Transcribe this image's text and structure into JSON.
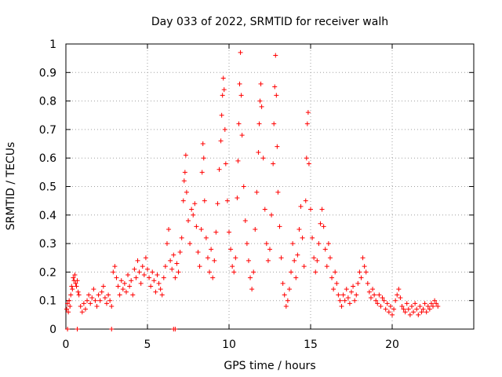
{
  "chart_data": {
    "type": "scatter",
    "title": "Day 033 of 2022, SRMTID for receiver walh",
    "xlabel": "GPS time / hours",
    "ylabel": "SRMTID / TECUs",
    "xlim": [
      0,
      25
    ],
    "ylim": [
      0,
      1
    ],
    "xticks": [
      0,
      5,
      10,
      15,
      20
    ],
    "xtick_labels": [
      "0",
      "5",
      "10",
      "15",
      "20"
    ],
    "yticks": [
      0,
      0.1,
      0.2,
      0.3,
      0.4,
      0.5,
      0.6,
      0.7,
      0.8,
      0.9,
      1
    ],
    "ytick_labels": [
      "0",
      "0.1",
      "0.2",
      "0.3",
      "0.4",
      "0.5",
      "0.6",
      "0.7",
      "0.8",
      "0.9",
      "1"
    ],
    "grid": true,
    "marker": "+",
    "color": "#ff0000",
    "series": [
      {
        "name": "SRMTID",
        "points": [
          [
            0.05,
            0.07
          ],
          [
            0.1,
            0.09
          ],
          [
            0.15,
            0.06
          ],
          [
            0.2,
            0.1
          ],
          [
            0.25,
            0.08
          ],
          [
            0.3,
            0.12
          ],
          [
            0.35,
            0.15
          ],
          [
            0.4,
            0.14
          ],
          [
            0.45,
            0.18
          ],
          [
            0.5,
            0.17
          ],
          [
            0.55,
            0.19
          ],
          [
            0.6,
            0.16
          ],
          [
            0.65,
            0.15
          ],
          [
            0.7,
            0.17
          ],
          [
            0.75,
            0.13
          ],
          [
            0.8,
            0.12
          ],
          [
            0.9,
            0.08
          ],
          [
            1.0,
            0.06
          ],
          [
            1.1,
            0.09
          ],
          [
            1.2,
            0.07
          ],
          [
            1.3,
            0.1
          ],
          [
            1.4,
            0.12
          ],
          [
            1.5,
            0.09
          ],
          [
            1.6,
            0.11
          ],
          [
            1.7,
            0.14
          ],
          [
            1.8,
            0.1
          ],
          [
            1.9,
            0.08
          ],
          [
            2.0,
            0.12
          ],
          [
            2.1,
            0.1
          ],
          [
            2.2,
            0.13
          ],
          [
            2.3,
            0.15
          ],
          [
            2.4,
            0.11
          ],
          [
            2.5,
            0.09
          ],
          [
            2.6,
            0.12
          ],
          [
            2.7,
            0.1
          ],
          [
            2.8,
            0.08
          ],
          [
            2.9,
            0.2
          ],
          [
            3.0,
            0.22
          ],
          [
            3.1,
            0.18
          ],
          [
            3.2,
            0.15
          ],
          [
            3.3,
            0.12
          ],
          [
            3.4,
            0.17
          ],
          [
            3.5,
            0.14
          ],
          [
            3.6,
            0.16
          ],
          [
            3.7,
            0.13
          ],
          [
            3.8,
            0.19
          ],
          [
            3.9,
            0.15
          ],
          [
            4.0,
            0.17
          ],
          [
            4.1,
            0.12
          ],
          [
            4.2,
            0.21
          ],
          [
            4.3,
            0.18
          ],
          [
            4.4,
            0.24
          ],
          [
            4.5,
            0.2
          ],
          [
            4.6,
            0.16
          ],
          [
            4.7,
            0.22
          ],
          [
            4.8,
            0.19
          ],
          [
            4.9,
            0.25
          ],
          [
            5.0,
            0.21
          ],
          [
            5.1,
            0.18
          ],
          [
            5.2,
            0.15
          ],
          [
            5.3,
            0.2
          ],
          [
            5.4,
            0.17
          ],
          [
            5.5,
            0.13
          ],
          [
            5.6,
            0.19
          ],
          [
            5.7,
            0.16
          ],
          [
            5.8,
            0.14
          ],
          [
            5.9,
            0.12
          ],
          [
            6.0,
            0.18
          ],
          [
            6.1,
            0.22
          ],
          [
            6.2,
            0.3
          ],
          [
            6.3,
            0.35
          ],
          [
            6.4,
            0.24
          ],
          [
            6.5,
            0.21
          ],
          [
            6.6,
            0.26
          ],
          [
            6.7,
            0.18
          ],
          [
            6.8,
            0.23
          ],
          [
            6.9,
            0.2
          ],
          [
            7.0,
            0.27
          ],
          [
            7.1,
            0.32
          ],
          [
            7.2,
            0.45
          ],
          [
            7.25,
            0.52
          ],
          [
            7.3,
            0.55
          ],
          [
            7.35,
            0.61
          ],
          [
            7.4,
            0.48
          ],
          [
            7.5,
            0.38
          ],
          [
            7.6,
            0.3
          ],
          [
            7.7,
            0.42
          ],
          [
            7.8,
            0.4
          ],
          [
            7.9,
            0.44
          ],
          [
            8.0,
            0.36
          ],
          [
            8.1,
            0.27
          ],
          [
            8.2,
            0.22
          ],
          [
            8.3,
            0.35
          ],
          [
            8.35,
            0.55
          ],
          [
            8.4,
            0.65
          ],
          [
            8.45,
            0.6
          ],
          [
            8.5,
            0.45
          ],
          [
            8.6,
            0.32
          ],
          [
            8.7,
            0.25
          ],
          [
            8.8,
            0.2
          ],
          [
            8.9,
            0.28
          ],
          [
            9.0,
            0.18
          ],
          [
            9.1,
            0.24
          ],
          [
            9.2,
            0.34
          ],
          [
            9.3,
            0.44
          ],
          [
            9.4,
            0.56
          ],
          [
            9.5,
            0.66
          ],
          [
            9.55,
            0.75
          ],
          [
            9.6,
            0.82
          ],
          [
            9.65,
            0.88
          ],
          [
            9.7,
            0.84
          ],
          [
            9.75,
            0.7
          ],
          [
            9.8,
            0.58
          ],
          [
            9.9,
            0.45
          ],
          [
            10.0,
            0.34
          ],
          [
            10.1,
            0.28
          ],
          [
            10.2,
            0.22
          ],
          [
            10.3,
            0.2
          ],
          [
            10.4,
            0.25
          ],
          [
            10.5,
            0.46
          ],
          [
            10.55,
            0.59
          ],
          [
            10.6,
            0.72
          ],
          [
            10.65,
            0.86
          ],
          [
            10.7,
            0.97
          ],
          [
            10.75,
            0.82
          ],
          [
            10.8,
            0.68
          ],
          [
            10.9,
            0.5
          ],
          [
            11.0,
            0.38
          ],
          [
            11.1,
            0.3
          ],
          [
            11.2,
            0.24
          ],
          [
            11.3,
            0.18
          ],
          [
            11.4,
            0.14
          ],
          [
            11.5,
            0.2
          ],
          [
            11.6,
            0.35
          ],
          [
            11.7,
            0.48
          ],
          [
            11.8,
            0.62
          ],
          [
            11.85,
            0.72
          ],
          [
            11.9,
            0.8
          ],
          [
            11.95,
            0.86
          ],
          [
            12.0,
            0.78
          ],
          [
            12.1,
            0.6
          ],
          [
            12.2,
            0.42
          ],
          [
            12.3,
            0.3
          ],
          [
            12.4,
            0.24
          ],
          [
            12.5,
            0.28
          ],
          [
            12.6,
            0.4
          ],
          [
            12.7,
            0.58
          ],
          [
            12.75,
            0.72
          ],
          [
            12.8,
            0.85
          ],
          [
            12.85,
            0.96
          ],
          [
            12.9,
            0.82
          ],
          [
            12.95,
            0.64
          ],
          [
            13.0,
            0.48
          ],
          [
            13.1,
            0.36
          ],
          [
            13.2,
            0.25
          ],
          [
            13.3,
            0.16
          ],
          [
            13.4,
            0.12
          ],
          [
            13.5,
            0.08
          ],
          [
            13.6,
            0.1
          ],
          [
            13.7,
            0.14
          ],
          [
            13.8,
            0.2
          ],
          [
            13.9,
            0.3
          ],
          [
            14.0,
            0.24
          ],
          [
            14.1,
            0.18
          ],
          [
            14.2,
            0.26
          ],
          [
            14.3,
            0.35
          ],
          [
            14.4,
            0.43
          ],
          [
            14.5,
            0.32
          ],
          [
            14.6,
            0.22
          ],
          [
            14.7,
            0.45
          ],
          [
            14.75,
            0.6
          ],
          [
            14.8,
            0.72
          ],
          [
            14.85,
            0.76
          ],
          [
            14.9,
            0.58
          ],
          [
            15.0,
            0.42
          ],
          [
            15.1,
            0.32
          ],
          [
            15.2,
            0.25
          ],
          [
            15.3,
            0.2
          ],
          [
            15.4,
            0.24
          ],
          [
            15.5,
            0.3
          ],
          [
            15.6,
            0.37
          ],
          [
            15.7,
            0.42
          ],
          [
            15.8,
            0.36
          ],
          [
            15.9,
            0.28
          ],
          [
            16.0,
            0.22
          ],
          [
            16.1,
            0.3
          ],
          [
            16.2,
            0.25
          ],
          [
            16.3,
            0.18
          ],
          [
            16.4,
            0.14
          ],
          [
            16.5,
            0.2
          ],
          [
            16.6,
            0.16
          ],
          [
            16.7,
            0.12
          ],
          [
            16.8,
            0.1
          ],
          [
            16.9,
            0.08
          ],
          [
            17.0,
            0.12
          ],
          [
            17.1,
            0.1
          ],
          [
            17.2,
            0.14
          ],
          [
            17.3,
            0.11
          ],
          [
            17.4,
            0.09
          ],
          [
            17.5,
            0.13
          ],
          [
            17.6,
            0.15
          ],
          [
            17.7,
            0.1
          ],
          [
            17.8,
            0.12
          ],
          [
            17.9,
            0.16
          ],
          [
            18.0,
            0.2
          ],
          [
            18.1,
            0.18
          ],
          [
            18.2,
            0.25
          ],
          [
            18.3,
            0.22
          ],
          [
            18.4,
            0.2
          ],
          [
            18.5,
            0.16
          ],
          [
            18.6,
            0.13
          ],
          [
            18.7,
            0.11
          ],
          [
            18.8,
            0.14
          ],
          [
            18.9,
            0.12
          ],
          [
            19.0,
            0.1
          ],
          [
            19.1,
            0.09
          ],
          [
            19.2,
            0.12
          ],
          [
            19.3,
            0.08
          ],
          [
            19.4,
            0.11
          ],
          [
            19.5,
            0.1
          ],
          [
            19.6,
            0.07
          ],
          [
            19.7,
            0.09
          ],
          [
            19.8,
            0.06
          ],
          [
            19.9,
            0.08
          ],
          [
            20.0,
            0.05
          ],
          [
            20.1,
            0.07
          ],
          [
            20.2,
            0.1
          ],
          [
            20.3,
            0.12
          ],
          [
            20.4,
            0.14
          ],
          [
            20.5,
            0.11
          ],
          [
            20.6,
            0.08
          ],
          [
            20.7,
            0.07
          ],
          [
            20.8,
            0.06
          ],
          [
            20.9,
            0.09
          ],
          [
            21.0,
            0.07
          ],
          [
            21.1,
            0.05
          ],
          [
            21.2,
            0.08
          ],
          [
            21.3,
            0.06
          ],
          [
            21.4,
            0.09
          ],
          [
            21.5,
            0.07
          ],
          [
            21.6,
            0.05
          ],
          [
            21.7,
            0.08
          ],
          [
            21.8,
            0.06
          ],
          [
            21.9,
            0.07
          ],
          [
            22.0,
            0.09
          ],
          [
            22.1,
            0.06
          ],
          [
            22.2,
            0.08
          ],
          [
            22.3,
            0.07
          ],
          [
            22.4,
            0.09
          ],
          [
            22.5,
            0.08
          ],
          [
            22.6,
            0.1
          ],
          [
            22.7,
            0.09
          ],
          [
            22.8,
            0.08
          ],
          [
            0.1,
            0.0
          ],
          [
            0.7,
            0.0
          ],
          [
            2.8,
            0.0
          ],
          [
            6.6,
            0.0
          ],
          [
            6.7,
            0.0
          ]
        ]
      }
    ]
  }
}
